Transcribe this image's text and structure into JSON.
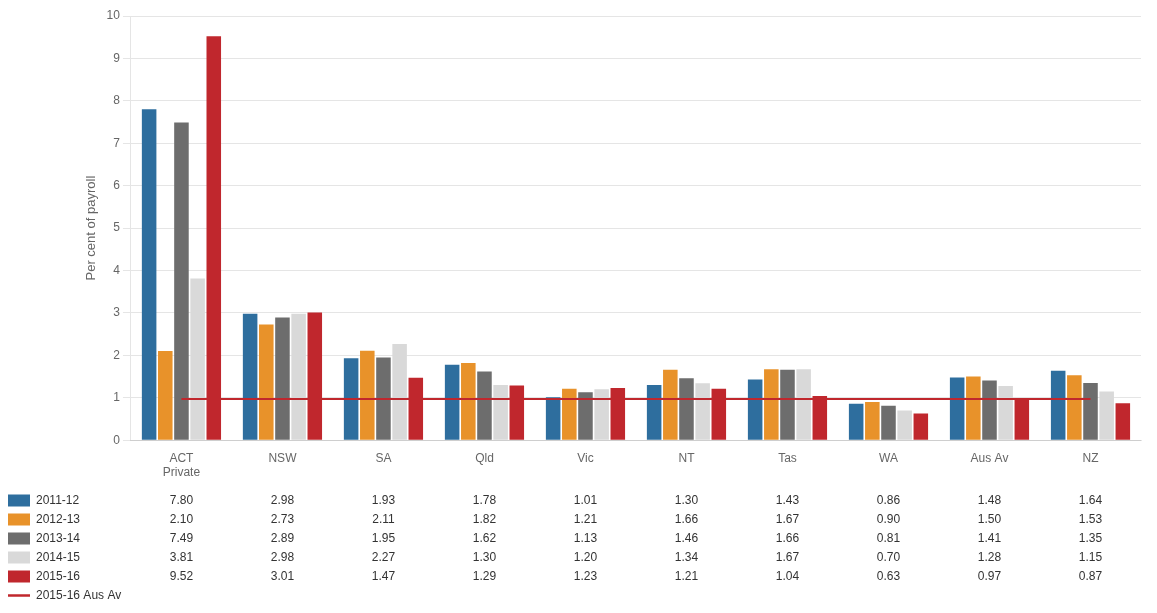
{
  "chart_data": {
    "type": "bar",
    "categories": [
      "ACT\nPrivate",
      "NSW",
      "SA",
      "Qld",
      "Vic",
      "NT",
      "Tas",
      "WA",
      "Aus Av",
      "NZ"
    ],
    "y_label": "Per cent of payroll",
    "ylim": [
      0,
      10
    ],
    "yticks": [
      0,
      1,
      2,
      3,
      4,
      5,
      6,
      7,
      8,
      9,
      10
    ],
    "grid": true,
    "legend": "bottom",
    "series": [
      {
        "name": "2011-12",
        "color": "#2E6E9E",
        "values": [
          7.8,
          2.98,
          1.93,
          1.78,
          1.01,
          1.3,
          1.43,
          0.86,
          1.48,
          1.64
        ],
        "value_labels": [
          "7.80",
          "2.98",
          "1.93",
          "1.78",
          "1.01",
          "1.30",
          "1.43",
          "0.86",
          "1.48",
          "1.64"
        ]
      },
      {
        "name": "2012-13",
        "color": "#E8922A",
        "values": [
          2.1,
          2.73,
          2.11,
          1.82,
          1.21,
          1.66,
          1.67,
          0.9,
          1.5,
          1.53
        ],
        "value_labels": [
          "2.10",
          "2.73",
          "2.11",
          "1.82",
          "1.21",
          "1.66",
          "1.67",
          "0.90",
          "1.50",
          "1.53"
        ]
      },
      {
        "name": "2013-14",
        "color": "#6D6D6D",
        "values": [
          7.49,
          2.89,
          1.95,
          1.62,
          1.13,
          1.46,
          1.66,
          0.81,
          1.41,
          1.35
        ],
        "value_labels": [
          "7.49",
          "2.89",
          "1.95",
          "1.62",
          "1.13",
          "1.46",
          "1.66",
          "0.81",
          "1.41",
          "1.35"
        ]
      },
      {
        "name": "2014-15",
        "color": "#D9D9D9",
        "values": [
          3.81,
          2.98,
          2.27,
          1.3,
          1.2,
          1.34,
          1.67,
          0.7,
          1.28,
          1.15
        ],
        "value_labels": [
          "3.81",
          "2.98",
          "2.27",
          "1.30",
          "1.20",
          "1.34",
          "1.67",
          "0.70",
          "1.28",
          "1.15"
        ]
      },
      {
        "name": "2015-16",
        "color": "#C0272D",
        "values": [
          9.52,
          3.01,
          1.47,
          1.29,
          1.23,
          1.21,
          1.04,
          0.63,
          0.97,
          0.87
        ],
        "value_labels": [
          "9.52",
          "3.01",
          "1.47",
          "1.29",
          "1.23",
          "1.21",
          "1.04",
          "0.63",
          "0.97",
          "0.87"
        ]
      },
      {
        "name": "2015-16 Aus Av",
        "type": "line",
        "color": "#C0272D",
        "marker": "none",
        "line_style": "solid",
        "values": [
          0.97,
          0.97,
          0.97,
          0.97,
          0.97,
          0.97,
          0.97,
          0.97,
          0.97,
          0.97
        ]
      }
    ]
  }
}
